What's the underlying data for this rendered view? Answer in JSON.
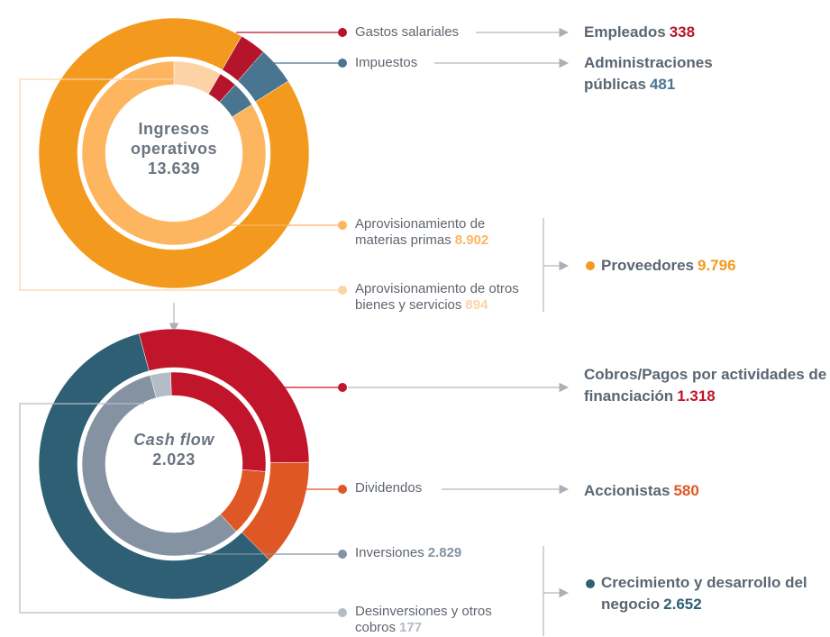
{
  "chart_data": [
    {
      "type": "donut",
      "center_title": "Ingresos operativos",
      "center_title_italic": false,
      "center_value": 13639,
      "center_value_label": "13.639",
      "inner": {
        "categories": [
          "Aprovisionamiento de otros bienes y servicios",
          "Gastos salariales",
          "Impuestos",
          "Aprovisionamiento de materias primas"
        ],
        "values": [
          894,
          338,
          481,
          8902
        ],
        "value_labels": [
          "894",
          null,
          null,
          "8.902"
        ],
        "colors": [
          "#fdd3a6",
          "#b5152b",
          "#4a7590",
          "#fdb55f"
        ]
      },
      "outer": {
        "categories": [
          "Empleados",
          "Administraciones públicas",
          "Proveedores"
        ],
        "values": [
          338,
          481,
          9796
        ],
        "value_labels": [
          "338",
          "481",
          "9.796"
        ],
        "colors": [
          "#b5152b",
          "#4a7590",
          "#f39a1e"
        ]
      }
    },
    {
      "type": "donut",
      "center_title": "Cash flow",
      "center_title_italic": true,
      "center_value": 2023,
      "center_value_label": "2.023",
      "inner": {
        "categories": [
          "Desinversiones y otros cobros",
          null,
          "Dividendos",
          "Inversiones"
        ],
        "values": [
          177,
          1318,
          580,
          2829
        ],
        "value_labels": [
          "177",
          null,
          null,
          "2.829"
        ],
        "colors": [
          "#b4bcc6",
          "#c0152a",
          "#e05726",
          "#8592a2"
        ]
      },
      "outer": {
        "categories": [
          "Cobros/Pagos por actividades de financiación",
          "Accionistas",
          "Crecimiento y desarrollo del negocio"
        ],
        "values": [
          1318,
          580,
          2652
        ],
        "value_labels": [
          "1.318",
          "580",
          "2.652"
        ],
        "colors": [
          "#c0152a",
          "#e05726",
          "#2f5f74"
        ]
      }
    }
  ]
}
